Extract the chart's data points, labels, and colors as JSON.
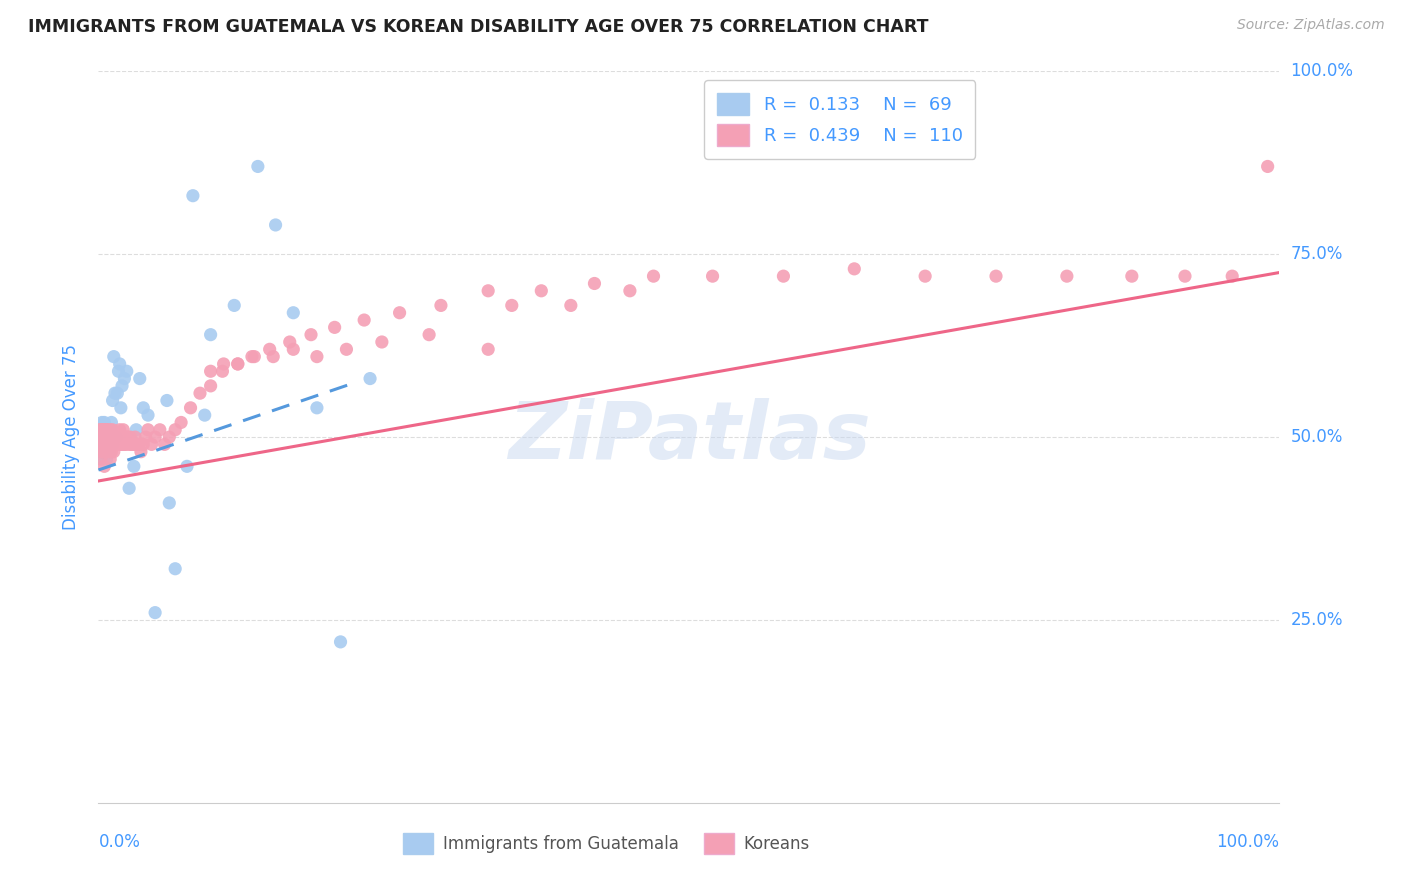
{
  "title": "IMMIGRANTS FROM GUATEMALA VS KOREAN DISABILITY AGE OVER 75 CORRELATION CHART",
  "source": "Source: ZipAtlas.com",
  "ylabel": "Disability Age Over 75",
  "ytick_labels": [
    "25.0%",
    "50.0%",
    "75.0%",
    "100.0%"
  ],
  "ytick_values": [
    0.25,
    0.5,
    0.75,
    1.0
  ],
  "legend_blue_R": "0.133",
  "legend_blue_N": "69",
  "legend_pink_R": "0.439",
  "legend_pink_N": "110",
  "legend_label1": "Immigrants from Guatemala",
  "legend_label2": "Koreans",
  "blue_color": "#A8CBF0",
  "pink_color": "#F4A0B5",
  "blue_line_color": "#5599DD",
  "pink_line_color": "#EE6688",
  "background_color": "#FFFFFF",
  "grid_color": "#DDDDDD",
  "title_color": "#222222",
  "axis_color": "#4499FF",
  "watermark_color": "#C8D8F0",
  "blue_intercept": 0.455,
  "blue_slope": 0.55,
  "pink_intercept": 0.44,
  "pink_slope": 0.285,
  "blue_x": [
    0.001,
    0.001,
    0.001,
    0.002,
    0.002,
    0.002,
    0.002,
    0.002,
    0.003,
    0.003,
    0.003,
    0.003,
    0.003,
    0.004,
    0.004,
    0.004,
    0.004,
    0.005,
    0.005,
    0.005,
    0.005,
    0.006,
    0.006,
    0.006,
    0.007,
    0.007,
    0.007,
    0.008,
    0.008,
    0.009,
    0.009,
    0.009,
    0.01,
    0.01,
    0.011,
    0.011,
    0.012,
    0.012,
    0.013,
    0.014,
    0.015,
    0.016,
    0.017,
    0.018,
    0.019,
    0.02,
    0.022,
    0.024,
    0.026,
    0.03,
    0.032,
    0.035,
    0.038,
    0.042,
    0.048,
    0.058,
    0.065,
    0.08,
    0.095,
    0.115,
    0.135,
    0.15,
    0.165,
    0.185,
    0.205,
    0.23,
    0.06,
    0.075,
    0.09
  ],
  "blue_y": [
    0.49,
    0.5,
    0.51,
    0.47,
    0.5,
    0.51,
    0.49,
    0.48,
    0.48,
    0.49,
    0.5,
    0.51,
    0.52,
    0.47,
    0.49,
    0.51,
    0.5,
    0.49,
    0.5,
    0.51,
    0.52,
    0.48,
    0.49,
    0.5,
    0.47,
    0.49,
    0.51,
    0.49,
    0.5,
    0.48,
    0.5,
    0.51,
    0.49,
    0.51,
    0.5,
    0.52,
    0.49,
    0.55,
    0.61,
    0.56,
    0.5,
    0.56,
    0.59,
    0.6,
    0.54,
    0.57,
    0.58,
    0.59,
    0.43,
    0.46,
    0.51,
    0.58,
    0.54,
    0.53,
    0.26,
    0.55,
    0.32,
    0.83,
    0.64,
    0.68,
    0.87,
    0.79,
    0.67,
    0.54,
    0.22,
    0.58,
    0.41,
    0.46,
    0.53
  ],
  "pink_x": [
    0.001,
    0.001,
    0.002,
    0.002,
    0.002,
    0.003,
    0.003,
    0.003,
    0.004,
    0.004,
    0.004,
    0.005,
    0.005,
    0.005,
    0.006,
    0.006,
    0.006,
    0.007,
    0.007,
    0.007,
    0.008,
    0.008,
    0.008,
    0.009,
    0.009,
    0.01,
    0.01,
    0.01,
    0.011,
    0.011,
    0.012,
    0.012,
    0.013,
    0.013,
    0.014,
    0.014,
    0.015,
    0.015,
    0.016,
    0.017,
    0.018,
    0.018,
    0.019,
    0.02,
    0.02,
    0.021,
    0.022,
    0.023,
    0.024,
    0.025,
    0.026,
    0.027,
    0.028,
    0.029,
    0.03,
    0.031,
    0.032,
    0.034,
    0.036,
    0.038,
    0.04,
    0.042,
    0.045,
    0.048,
    0.052,
    0.056,
    0.06,
    0.065,
    0.07,
    0.078,
    0.086,
    0.095,
    0.105,
    0.118,
    0.13,
    0.145,
    0.162,
    0.18,
    0.2,
    0.225,
    0.255,
    0.29,
    0.33,
    0.375,
    0.42,
    0.47,
    0.52,
    0.58,
    0.64,
    0.7,
    0.76,
    0.82,
    0.875,
    0.92,
    0.96,
    0.99,
    0.35,
    0.4,
    0.45,
    0.33,
    0.28,
    0.24,
    0.21,
    0.185,
    0.165,
    0.148,
    0.132,
    0.118,
    0.106,
    0.095
  ],
  "pink_y": [
    0.49,
    0.51,
    0.47,
    0.49,
    0.51,
    0.48,
    0.5,
    0.51,
    0.48,
    0.5,
    0.51,
    0.46,
    0.49,
    0.51,
    0.48,
    0.5,
    0.51,
    0.48,
    0.5,
    0.51,
    0.48,
    0.5,
    0.51,
    0.49,
    0.5,
    0.47,
    0.49,
    0.51,
    0.48,
    0.5,
    0.49,
    0.51,
    0.48,
    0.5,
    0.49,
    0.5,
    0.49,
    0.5,
    0.49,
    0.5,
    0.49,
    0.51,
    0.49,
    0.49,
    0.5,
    0.51,
    0.49,
    0.49,
    0.5,
    0.5,
    0.49,
    0.5,
    0.49,
    0.49,
    0.49,
    0.5,
    0.49,
    0.49,
    0.48,
    0.49,
    0.5,
    0.51,
    0.49,
    0.5,
    0.51,
    0.49,
    0.5,
    0.51,
    0.52,
    0.54,
    0.56,
    0.57,
    0.59,
    0.6,
    0.61,
    0.62,
    0.63,
    0.64,
    0.65,
    0.66,
    0.67,
    0.68,
    0.7,
    0.7,
    0.71,
    0.72,
    0.72,
    0.72,
    0.73,
    0.72,
    0.72,
    0.72,
    0.72,
    0.72,
    0.72,
    0.87,
    0.68,
    0.68,
    0.7,
    0.62,
    0.64,
    0.63,
    0.62,
    0.61,
    0.62,
    0.61,
    0.61,
    0.6,
    0.6,
    0.59
  ]
}
